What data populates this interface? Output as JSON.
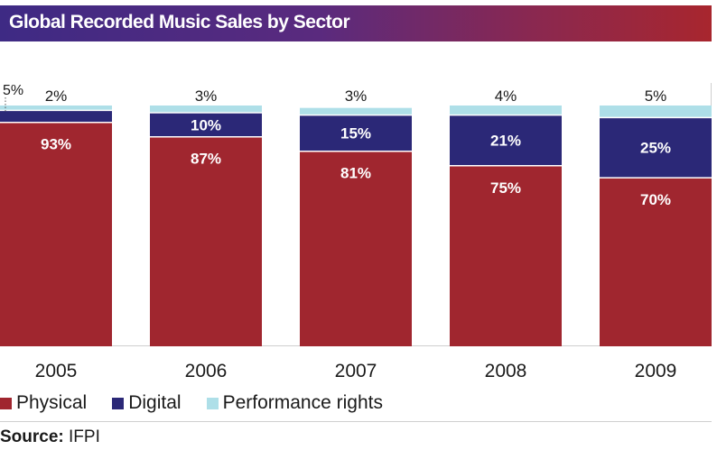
{
  "title": "Global Recorded Music Sales by Sector",
  "source": {
    "label": "Source:",
    "value": "IFPI"
  },
  "colors": {
    "physical": "#a0262f",
    "digital": "#2b2877",
    "performance": "#aedfe8"
  },
  "chart_data": {
    "type": "bar",
    "stacked": true,
    "categories": [
      "2005",
      "2006",
      "2007",
      "2008",
      "2009"
    ],
    "series": [
      {
        "name": "Physical",
        "values": [
          93,
          87,
          81,
          75,
          70
        ],
        "labels": [
          "93%",
          "87%",
          "81%",
          "75%",
          "70%"
        ]
      },
      {
        "name": "Digital",
        "values": [
          5,
          10,
          15,
          21,
          25
        ],
        "labels": [
          "5%",
          "10%",
          "15%",
          "21%",
          "25%"
        ]
      },
      {
        "name": "Performance rights",
        "values": [
          2,
          3,
          3,
          4,
          5
        ],
        "labels": [
          "2%",
          "3%",
          "3%",
          "4%",
          "5%"
        ]
      }
    ],
    "ylim": [
      0,
      100
    ],
    "legend": "bottom-left"
  }
}
